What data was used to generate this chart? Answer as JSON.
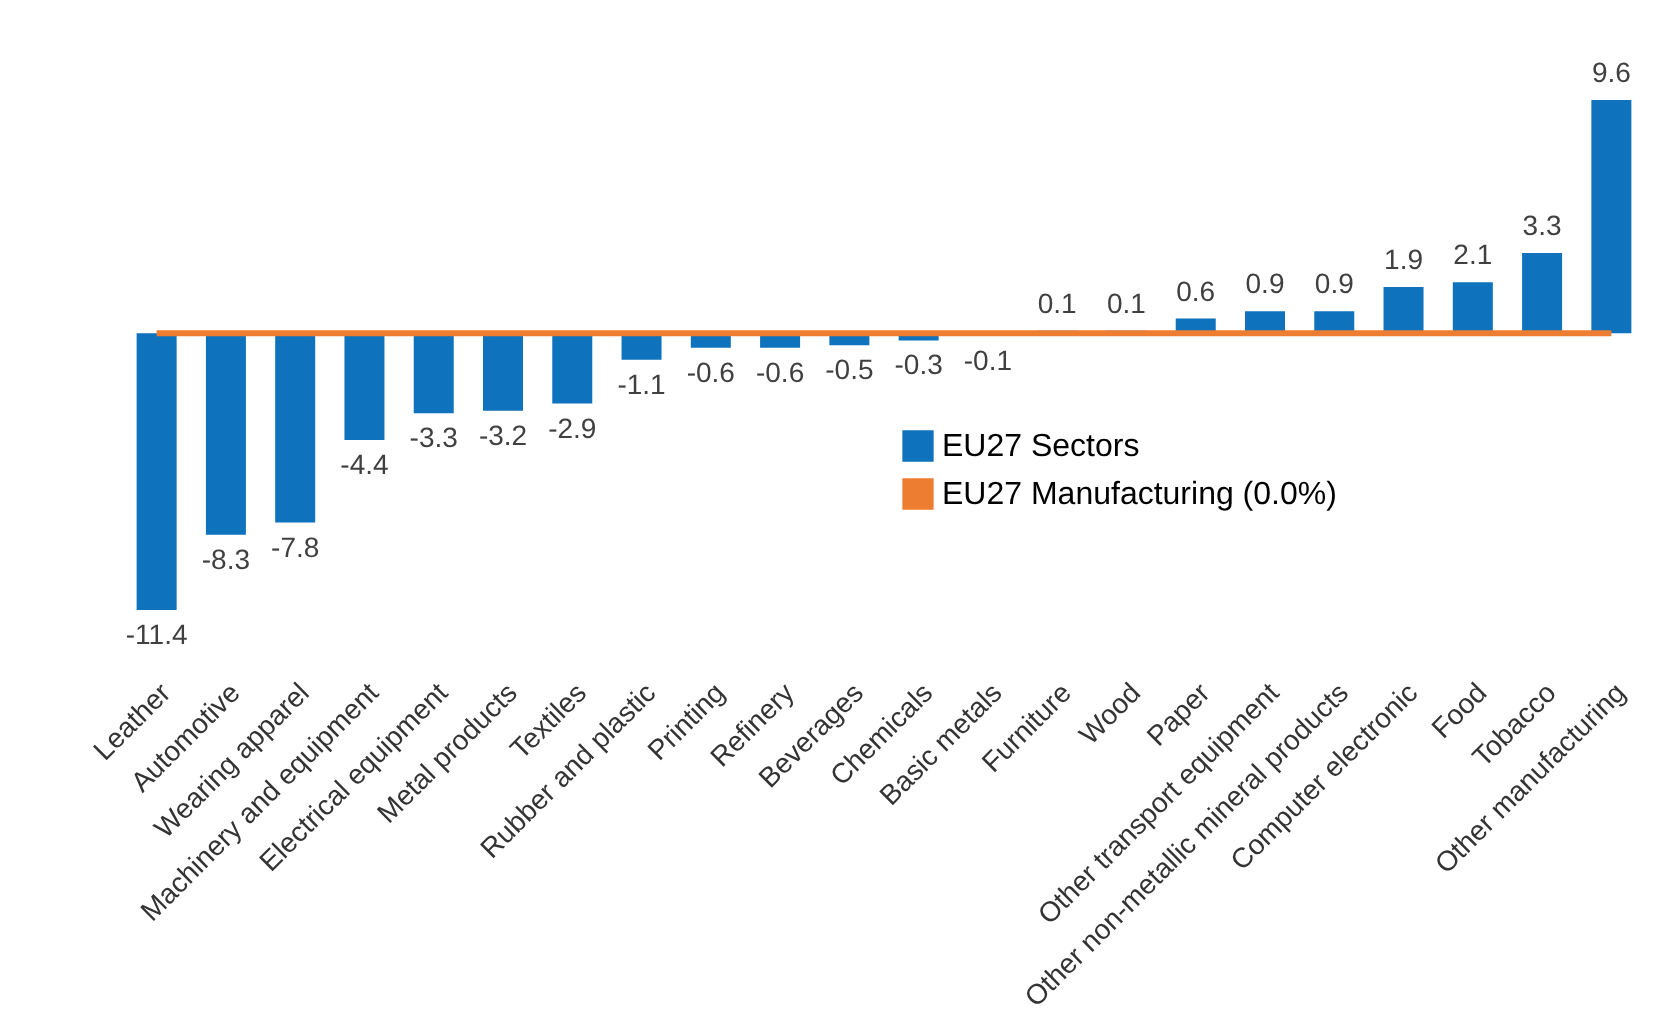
{
  "chart_data": {
    "type": "bar",
    "categories": [
      "Leather",
      "Automotive",
      "Wearing apparel",
      "Machinery and equipment",
      "Electrical equipment",
      "Metal products",
      "Textiles",
      "Rubber and plastic",
      "Printing",
      "Refinery",
      "Beverages",
      "Chemicals",
      "Basic metals",
      "Furniture",
      "Wood",
      "Paper",
      "Other transport equipment",
      "Other non-metallic mineral products",
      "Computer electronic",
      "Food",
      "Tobacco",
      "Other manufacturing"
    ],
    "series": [
      {
        "name": "EU27 Sectors",
        "color": "#0e72bd",
        "values": [
          -11.4,
          -8.3,
          -7.8,
          -4.4,
          -3.3,
          -3.2,
          -2.9,
          -1.1,
          -0.6,
          -0.6,
          -0.5,
          -0.3,
          -0.1,
          0.1,
          0.1,
          0.6,
          0.9,
          0.9,
          1.9,
          2.1,
          3.3,
          9.6
        ],
        "value_labels": [
          "-11.4",
          "-8.3",
          "-7.8",
          "-4.4",
          "-3.3",
          "-3.2",
          "-2.9",
          "-1.1",
          "-0.6",
          "-0.6",
          "-0.5",
          "-0.3",
          "-0.1",
          "0.1",
          "0.1",
          "0.6",
          "0.9",
          "0.9",
          "1.9",
          "2.1",
          "3.3",
          "9.6"
        ]
      },
      {
        "name": "EU27 Manufacturing (0.0%)",
        "type": "line",
        "color": "#ed7d31",
        "values": [
          0,
          0,
          0,
          0,
          0,
          0,
          0,
          0,
          0,
          0,
          0,
          0,
          0,
          0,
          0,
          0,
          0,
          0,
          0,
          0,
          0,
          0
        ]
      }
    ],
    "legend": "center",
    "tick_labels": "x",
    "grid": false
  }
}
